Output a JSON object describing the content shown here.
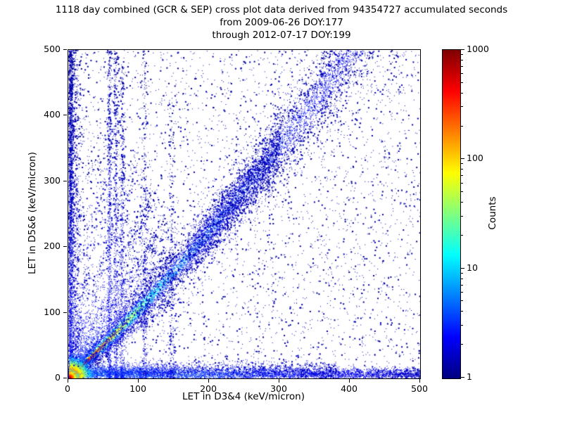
{
  "chart_data": {
    "type": "heatmap",
    "title": "1118 day combined (GCR & SEP) cross plot data derived from 94354727 accumulated seconds",
    "subtitle_lines": [
      "from 2009-06-26 DOY:177",
      "through 2012-07-17 DOY:199"
    ],
    "xlabel": "LET in D3&4 (keV/micron)",
    "ylabel": "LET in D5&6 (keV/micron)",
    "xlim": [
      0,
      500
    ],
    "ylim": [
      0,
      500
    ],
    "xticks": [
      0,
      100,
      200,
      300,
      400,
      500
    ],
    "yticks": [
      0,
      100,
      200,
      300,
      400,
      500
    ],
    "grid": false,
    "colorbar": {
      "label": "Counts",
      "scale": "log",
      "min": 1,
      "max": 1000,
      "ticks": [
        1,
        10,
        100,
        1000
      ],
      "colormap": "jet"
    },
    "features": [
      {
        "type": "uniform",
        "n": 3800,
        "t": 0.035
      },
      {
        "type": "vband",
        "n": 2600,
        "x0": 2.5,
        "sigma": 2.5,
        "ymax": 500,
        "pow": 1.25,
        "t": 0.1
      },
      {
        "type": "vband",
        "n": 1000,
        "x0": 9,
        "sigma": 5,
        "ymax": 500,
        "pow": 1.4,
        "t": 0.07
      },
      {
        "type": "hband",
        "n": 5200,
        "y0": 7,
        "sigma": 4.5,
        "xmax": 500,
        "t": 0.22,
        "decay": 0.75
      },
      {
        "type": "hband",
        "n": 1600,
        "y0": 13,
        "sigma": 7,
        "xmax": 380,
        "t": 0.1,
        "decay": 0.6
      },
      {
        "type": "hband",
        "n": 900,
        "y0": 10,
        "sigma": 6,
        "xmax": 150,
        "t": 0.18,
        "decay": 0.5
      },
      {
        "type": "diag",
        "n": 9500,
        "smin": 0,
        "smax": 500,
        "curve": 0.0006,
        "w0": 3.5,
        "wg": 0.055,
        "p": 1.55
      },
      {
        "type": "diag",
        "n": 2600,
        "smin": 0,
        "smax": 500,
        "curve": 0.0006,
        "w0": 11,
        "wg": 0.11,
        "p": 1.25,
        "tflat": 0.055
      },
      {
        "type": "diag",
        "n": 1700,
        "smin": 170,
        "smax": 300,
        "curve": 0.0006,
        "w0": 7,
        "wg": 0.05,
        "p": 1.0,
        "tflat": 0.1
      },
      {
        "type": "ray",
        "n": 500,
        "angle": 40,
        "rmax": 200,
        "t": 0.14
      },
      {
        "type": "ray",
        "n": 500,
        "angle": 46,
        "rmax": 220,
        "t": 0.14
      },
      {
        "type": "ray",
        "n": 750,
        "angle": 53,
        "rmax": 240,
        "t": 0.16
      },
      {
        "type": "ray",
        "n": 650,
        "angle": 60,
        "rmax": 280,
        "t": 0.15
      },
      {
        "type": "ray",
        "n": 550,
        "angle": 67,
        "rmax": 310,
        "t": 0.13
      },
      {
        "type": "ray",
        "n": 450,
        "angle": 74,
        "rmax": 340,
        "t": 0.12
      },
      {
        "type": "ray",
        "n": 380,
        "angle": 81,
        "rmax": 380,
        "t": 0.1
      },
      {
        "type": "vband",
        "n": 720,
        "x0": 58,
        "sigma": 1.8,
        "ymax": 500,
        "pow": 1.5,
        "t": 0.12
      },
      {
        "type": "vband",
        "n": 560,
        "x0": 67,
        "sigma": 1.8,
        "ymax": 500,
        "pow": 1.5,
        "t": 0.1
      },
      {
        "type": "vband",
        "n": 440,
        "x0": 76,
        "sigma": 1.8,
        "ymax": 480,
        "pow": 1.5,
        "t": 0.09
      },
      {
        "type": "vband",
        "n": 330,
        "x0": 108,
        "sigma": 2.2,
        "ymax": 500,
        "pow": 1.6,
        "t": 0.07
      },
      {
        "type": "vband",
        "n": 260,
        "x0": 147,
        "sigma": 2.5,
        "ymax": 430,
        "pow": 1.6,
        "t": 0.06
      },
      {
        "type": "cluster",
        "n": 9500,
        "cx": 1.5,
        "cy": 1.5,
        "scale": 7,
        "rmax": 46
      },
      {
        "type": "cluster",
        "n": 2200,
        "cx": 1,
        "cy": 1,
        "scale": 2.8,
        "rmax": 22
      }
    ]
  }
}
